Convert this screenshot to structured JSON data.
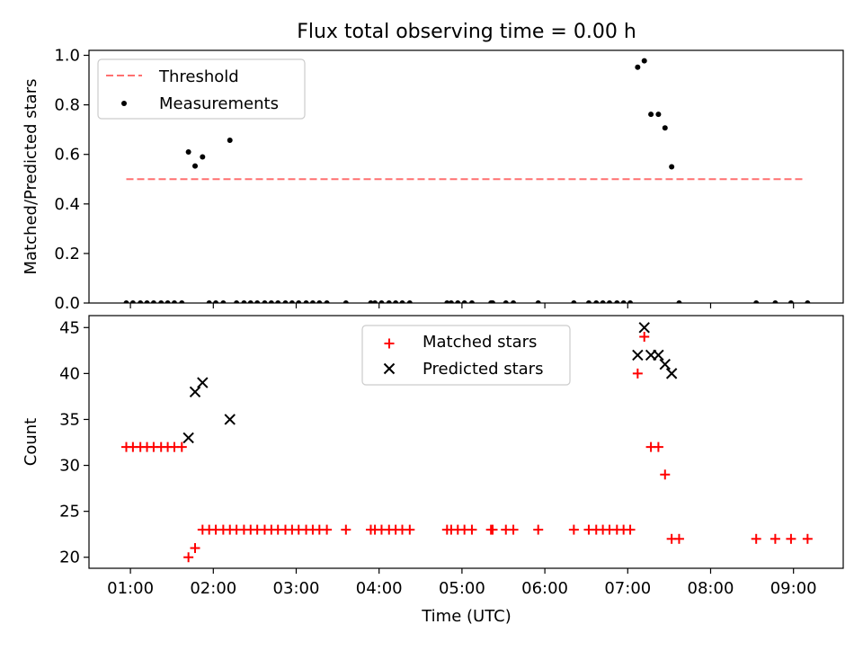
{
  "figure": {
    "title": "Flux total observing time = 0.00 h",
    "xlabel": "Time (UTC)",
    "x_ticks": [
      "01:00",
      "02:00",
      "03:00",
      "04:00",
      "05:00",
      "06:00",
      "07:00",
      "08:00",
      "09:00"
    ]
  },
  "colors": {
    "threshold": "#ff7070",
    "measurement": "#000000",
    "matched": "#ff0000",
    "predicted": "#000000",
    "axes": "#000000"
  },
  "chart_data": [
    {
      "type": "scatter",
      "ylabel": "Matched/Predicted stars",
      "ylim": [
        0,
        1.02
      ],
      "xlim": [
        0.5,
        9.6
      ],
      "yticks": [
        "0.0",
        "0.2",
        "0.4",
        "0.6",
        "0.8",
        "1.0"
      ],
      "legend": {
        "placement": "upper-left",
        "entries": [
          "Threshold",
          "Measurements"
        ]
      },
      "threshold": {
        "name": "Threshold",
        "y": 0.5,
        "x_range": [
          0.95,
          9.15
        ],
        "style": "dashed"
      },
      "series": [
        {
          "name": "Measurements",
          "x": [
            0.95,
            1.03,
            1.12,
            1.2,
            1.28,
            1.37,
            1.45,
            1.53,
            1.62,
            1.7,
            1.78,
            1.87,
            1.95,
            2.03,
            2.12,
            2.2,
            2.28,
            2.37,
            2.45,
            2.53,
            2.62,
            2.7,
            2.78,
            2.87,
            2.95,
            3.03,
            3.12,
            3.2,
            3.28,
            3.37,
            3.6,
            3.9,
            3.95,
            4.03,
            4.12,
            4.2,
            4.28,
            4.37,
            4.82,
            4.87,
            4.95,
            5.03,
            5.12,
            5.35,
            5.37,
            5.53,
            5.62,
            5.92,
            6.35,
            6.53,
            6.62,
            6.7,
            6.78,
            6.87,
            6.95,
            7.03,
            7.12,
            7.2,
            7.28,
            7.37,
            7.45,
            7.53,
            7.62,
            8.55,
            8.78,
            8.97,
            9.17
          ],
          "y": [
            0,
            0,
            0,
            0,
            0,
            0,
            0,
            0,
            0,
            0.61,
            0.553,
            0.59,
            0,
            0,
            0,
            0.657,
            0,
            0,
            0,
            0,
            0,
            0,
            0,
            0,
            0,
            0,
            0,
            0,
            0,
            0,
            0,
            0,
            0,
            0,
            0,
            0,
            0,
            0,
            0,
            0,
            0,
            0,
            0,
            0,
            0,
            0,
            0,
            0,
            0,
            0,
            0,
            0,
            0,
            0,
            0,
            0,
            0.952,
            0.978,
            0.762,
            0.762,
            0.707,
            0.55,
            0,
            0,
            0,
            0,
            0
          ]
        }
      ]
    },
    {
      "type": "scatter",
      "ylabel": "Count",
      "xlabel": "Time (UTC)",
      "ylim": [
        18.8,
        46.3
      ],
      "xlim": [
        0.5,
        9.6
      ],
      "yticks": [
        "20",
        "25",
        "30",
        "35",
        "40",
        "45"
      ],
      "legend": {
        "placement": "upper-center",
        "entries": [
          "Matched stars",
          "Predicted stars"
        ]
      },
      "series": [
        {
          "name": "Matched stars",
          "marker": "plus",
          "x": [
            0.95,
            1.03,
            1.12,
            1.2,
            1.28,
            1.37,
            1.45,
            1.53,
            1.62,
            1.7,
            1.78,
            1.87,
            1.95,
            2.03,
            2.12,
            2.2,
            2.28,
            2.37,
            2.45,
            2.53,
            2.62,
            2.7,
            2.78,
            2.87,
            2.95,
            3.03,
            3.12,
            3.2,
            3.28,
            3.37,
            3.6,
            3.9,
            3.95,
            4.03,
            4.12,
            4.2,
            4.28,
            4.37,
            4.82,
            4.87,
            4.95,
            5.03,
            5.12,
            5.35,
            5.37,
            5.53,
            5.62,
            5.92,
            6.35,
            6.53,
            6.62,
            6.7,
            6.78,
            6.87,
            6.95,
            7.03,
            7.12,
            7.2,
            7.28,
            7.37,
            7.45,
            7.53,
            7.62,
            8.55,
            8.78,
            8.97,
            9.17
          ],
          "y": [
            32,
            32,
            32,
            32,
            32,
            32,
            32,
            32,
            32,
            20,
            21,
            23,
            23,
            23,
            23,
            23,
            23,
            23,
            23,
            23,
            23,
            23,
            23,
            23,
            23,
            23,
            23,
            23,
            23,
            23,
            23,
            23,
            23,
            23,
            23,
            23,
            23,
            23,
            23,
            23,
            23,
            23,
            23,
            23,
            23,
            23,
            23,
            23,
            23,
            23,
            23,
            23,
            23,
            23,
            23,
            23,
            40,
            44,
            32,
            32,
            29,
            22,
            22,
            22,
            22,
            22,
            22
          ]
        },
        {
          "name": "Predicted stars",
          "marker": "x",
          "x": [
            1.7,
            1.78,
            1.87,
            2.2,
            7.12,
            7.2,
            7.28,
            7.37,
            7.45,
            7.53
          ],
          "y": [
            33,
            38,
            39,
            35,
            42,
            45,
            42,
            42,
            41,
            40
          ]
        }
      ]
    }
  ]
}
